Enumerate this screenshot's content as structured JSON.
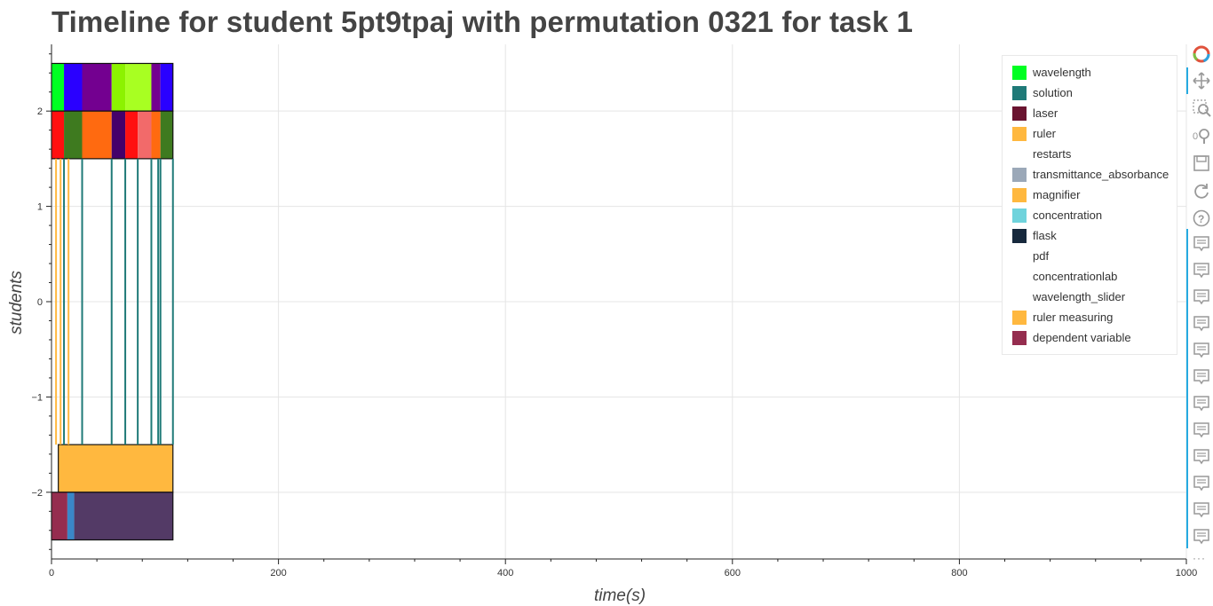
{
  "chart_data": {
    "type": "timeline",
    "title": "Timeline for student 5pt9tpaj with permutation 0321 for task 1",
    "xlabel": "time(s)",
    "ylabel": "students",
    "xlim": [
      0,
      1000
    ],
    "ylim": [
      -2.7,
      2.7
    ],
    "x_ticks": [
      0,
      200,
      400,
      600,
      800,
      1000
    ],
    "x_tick_labels": [
      "0",
      "200",
      "400",
      "600",
      "800",
      "1000"
    ],
    "y_ticks": [
      -2,
      -1,
      0,
      1,
      2
    ],
    "y_tick_labels": [
      "−2",
      "−1",
      "0",
      "1",
      "2"
    ],
    "grid": true,
    "legend_position": "top-right",
    "legend": [
      {
        "name": "wavelength",
        "color": "#00ff22"
      },
      {
        "name": "solution",
        "color": "#1f7a78"
      },
      {
        "name": "laser",
        "color": "#6a1430"
      },
      {
        "name": "ruler",
        "color": "#ffb83f"
      },
      {
        "name": "restarts",
        "color": "#ffffff"
      },
      {
        "name": "transmittance_absorbance",
        "color": "#9ba8b8"
      },
      {
        "name": "magnifier",
        "color": "#ffb83f"
      },
      {
        "name": "concentration",
        "color": "#6fd3dc"
      },
      {
        "name": "flask",
        "color": "#17293d"
      },
      {
        "name": "pdf",
        "color": "#ffffff"
      },
      {
        "name": "concentrationlab",
        "color": "#ffffff"
      },
      {
        "name": "wavelength_slider",
        "color": "#ffffff"
      },
      {
        "name": "ruler measuring",
        "color": "#ffb83f"
      },
      {
        "name": "dependent variable",
        "color": "#952d4f"
      }
    ],
    "bands": [
      {
        "y0": 2.0,
        "y1": 2.5,
        "segments": [
          {
            "x0": 0,
            "x1": 11,
            "color": "#00ff22"
          },
          {
            "x0": 11,
            "x1": 27,
            "color": "#2a00ff"
          },
          {
            "x0": 27,
            "x1": 53,
            "color": "#730090"
          },
          {
            "x0": 53,
            "x1": 65,
            "color": "#8cf200"
          },
          {
            "x0": 65,
            "x1": 88,
            "color": "#a8ff22"
          },
          {
            "x0": 88,
            "x1": 96,
            "color": "#730090"
          },
          {
            "x0": 96,
            "x1": 107,
            "color": "#2a00ff"
          }
        ]
      },
      {
        "y0": 1.5,
        "y1": 2.0,
        "segments": [
          {
            "x0": 0,
            "x1": 11,
            "color": "#ff1010"
          },
          {
            "x0": 11,
            "x1": 27,
            "color": "#3e7a1f"
          },
          {
            "x0": 27,
            "x1": 53,
            "color": "#ff6a10"
          },
          {
            "x0": 53,
            "x1": 65,
            "color": "#44006a"
          },
          {
            "x0": 65,
            "x1": 76,
            "color": "#ff1010"
          },
          {
            "x0": 76,
            "x1": 88,
            "color": "#f26a6a"
          },
          {
            "x0": 88,
            "x1": 96,
            "color": "#ff6a10"
          },
          {
            "x0": 96,
            "x1": 107,
            "color": "#3e7a1f"
          }
        ]
      },
      {
        "y0": -2.0,
        "y1": -1.5,
        "segments": [
          {
            "x0": 6,
            "x1": 107,
            "color": "#ffb83f"
          }
        ]
      },
      {
        "y0": -2.5,
        "y1": -2.0,
        "segments": [
          {
            "x0": 0,
            "x1": 14,
            "color": "#952d4f"
          },
          {
            "x0": 14,
            "x1": 20,
            "color": "#3a87c8"
          },
          {
            "x0": 20,
            "x1": 107,
            "color": "#533a66"
          }
        ]
      }
    ],
    "event_lines": [
      {
        "x": 4,
        "color": "#ffb83f"
      },
      {
        "x": 8,
        "color": "#ffb83f"
      },
      {
        "x": 11,
        "color": "#1f7a78"
      },
      {
        "x": 15,
        "color": "#ffb83f"
      },
      {
        "x": 27,
        "color": "#1f7a78"
      },
      {
        "x": 53,
        "color": "#1f7a78"
      },
      {
        "x": 65,
        "color": "#1f7a78"
      },
      {
        "x": 76,
        "color": "#1f7a78"
      },
      {
        "x": 88,
        "color": "#1f7a78"
      },
      {
        "x": 94,
        "color": "#1f7a78"
      },
      {
        "x": 96,
        "color": "#1f7a78"
      },
      {
        "x": 107,
        "color": "#1f7a78"
      }
    ],
    "event_span": [
      -1.5,
      1.5
    ]
  },
  "toolbar": {
    "logo": "bokeh-logo-icon",
    "tools": [
      "pan-icon",
      "box-zoom-icon",
      "wheel-zoom-icon",
      "save-icon",
      "reset-icon",
      "help-icon"
    ],
    "hover_tool_count": 12,
    "hover_icon": "hover-tooltip-icon",
    "more_label": "···"
  }
}
